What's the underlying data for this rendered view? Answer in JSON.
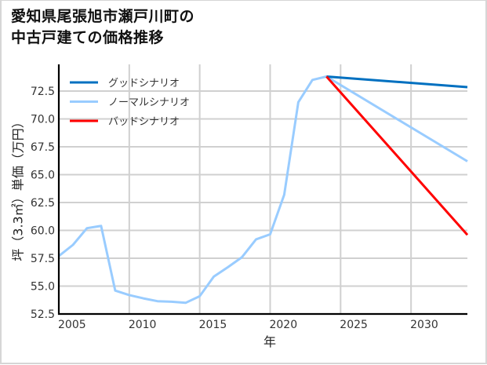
{
  "title_lines": [
    "愛知県尾張旭市瀬戸川町の",
    "中古戸建ての価格推移"
  ],
  "chart_data": {
    "type": "line",
    "title": "愛知県尾張旭市瀬戸川町の中古戸建ての価格推移",
    "xlabel": "年",
    "ylabel": "坪（3.3㎡）単価（万円）",
    "xlim": [
      2005,
      2034
    ],
    "ylim": [
      52.5,
      74.7
    ],
    "x_ticks": [
      2005,
      2010,
      2015,
      2020,
      2025,
      2030
    ],
    "y_ticks": [
      52.5,
      55.0,
      57.5,
      60.0,
      62.5,
      65.0,
      67.5,
      70.0,
      72.5
    ],
    "y_tick_labels": [
      "52.5",
      "55.0",
      "57.5",
      "60.0",
      "62.5",
      "65.0",
      "67.5",
      "70.0",
      "72.5"
    ],
    "grid": true,
    "legend_position": "upper left",
    "series": [
      {
        "name": "ノーマルシナリオ",
        "role": "historical",
        "color": "#99ccff",
        "x": [
          2005,
          2006,
          2007,
          2008,
          2009,
          2010,
          2011,
          2012,
          2013,
          2014,
          2015,
          2016,
          2017,
          2018,
          2019,
          2020,
          2021,
          2022,
          2023,
          2024
        ],
        "values": [
          57.7,
          58.7,
          60.2,
          60.4,
          54.6,
          54.2,
          53.9,
          53.65,
          53.6,
          53.5,
          54.1,
          55.85,
          56.7,
          57.6,
          59.2,
          59.65,
          63.2,
          71.5,
          73.5,
          73.8
        ]
      },
      {
        "name": "グッドシナリオ",
        "role": "forecast",
        "color": "#0070c0",
        "x": [
          2024,
          2034
        ],
        "values": [
          73.8,
          72.85
        ]
      },
      {
        "name": "ノーマルシナリオ",
        "role": "forecast",
        "color": "#99ccff",
        "x": [
          2024,
          2034
        ],
        "values": [
          73.8,
          66.2
        ]
      },
      {
        "name": "バッドシナリオ",
        "role": "forecast",
        "color": "#ff0000",
        "x": [
          2024,
          2034
        ],
        "values": [
          73.8,
          59.6
        ]
      }
    ],
    "legend": [
      {
        "label": "グッドシナリオ",
        "color": "#0070c0"
      },
      {
        "label": "ノーマルシナリオ",
        "color": "#99ccff"
      },
      {
        "label": "バッドシナリオ",
        "color": "#ff0000"
      }
    ]
  },
  "colors": {
    "grid": "#d0d0d0",
    "axis": "#000000",
    "frame": "#d6d6d6"
  }
}
